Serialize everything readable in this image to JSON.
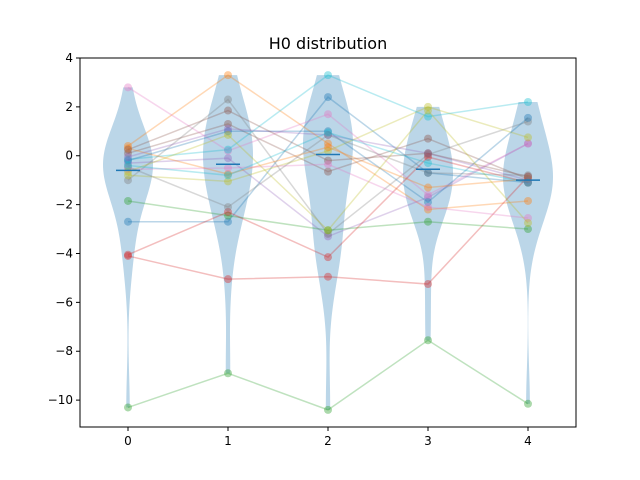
{
  "chart_data": {
    "type": "violin",
    "title": "H0 distribution",
    "xlabel": "",
    "ylabel": "",
    "categories": [
      "0",
      "1",
      "2",
      "3",
      "4"
    ],
    "x_ticks": [
      0,
      1,
      2,
      3,
      4
    ],
    "y_ticks": [
      4,
      2,
      0,
      -2,
      -4,
      -6,
      -8,
      -10
    ],
    "xlim": [
      -0.48,
      4.48
    ],
    "ylim": [
      -11.1,
      4.0
    ],
    "grid": false,
    "legend": "none",
    "violin_color": "#1f77b4",
    "medians": [
      -0.6,
      -0.35,
      0.05,
      -0.55,
      -1.0
    ],
    "series": [
      {
        "color": "#1f77b4",
        "values": [
          -2.7,
          -2.7,
          2.4,
          -0.7,
          -1.1
        ]
      },
      {
        "color": "#ff7f0e",
        "values": [
          0.4,
          3.3,
          0.5,
          -2.2,
          -1.85
        ]
      },
      {
        "color": "#2ca02c",
        "values": [
          -10.3,
          -8.9,
          -10.4,
          -7.55,
          -10.15
        ]
      },
      {
        "color": "#d62728",
        "values": [
          -4.1,
          -5.05,
          -4.95,
          -5.25,
          -0.85
        ]
      },
      {
        "color": "#9467bd",
        "values": [
          -0.3,
          -0.1,
          -3.3,
          -1.7,
          0.5
        ]
      },
      {
        "color": "#8c564b",
        "values": [
          0.1,
          1.3,
          -0.65,
          0.7,
          -0.95
        ]
      },
      {
        "color": "#e377c2",
        "values": [
          2.8,
          0.2,
          1.7,
          -1.6,
          0.5
        ]
      },
      {
        "color": "#7f7f7f",
        "values": [
          -1.0,
          2.3,
          -3.2,
          0.05,
          1.4
        ]
      },
      {
        "color": "#bcbd22",
        "values": [
          -0.8,
          -1.05,
          0.2,
          2.0,
          0.75
        ]
      },
      {
        "color": "#17becf",
        "values": [
          -0.15,
          0.25,
          3.3,
          1.6,
          2.2
        ]
      },
      {
        "color": "#1f77b4",
        "values": [
          -0.2,
          1.0,
          1.0,
          -1.9,
          1.55
        ]
      },
      {
        "color": "#ff7f0e",
        "values": [
          0.3,
          -0.75,
          0.35,
          -1.3,
          -0.95
        ]
      },
      {
        "color": "#2ca02c",
        "values": [
          -1.85,
          -2.45,
          -3.05,
          -2.7,
          -3.0
        ]
      },
      {
        "color": "#d62728",
        "values": [
          -4.05,
          -2.3,
          -4.15,
          -0.05,
          -1.1
        ]
      },
      {
        "color": "#9467bd",
        "values": [
          -0.05,
          1.1,
          0.85,
          0.1,
          -1.0
        ]
      },
      {
        "color": "#8c564b",
        "values": [
          0.25,
          1.85,
          -0.2,
          0.1,
          -0.85
        ]
      },
      {
        "color": "#e377c2",
        "values": [
          -0.55,
          -0.5,
          -0.35,
          -2.1,
          -2.55
        ]
      },
      {
        "color": "#7f7f7f",
        "values": [
          -0.45,
          -2.1,
          0.85,
          -0.7,
          -0.8
        ]
      },
      {
        "color": "#bcbd22",
        "values": [
          -0.65,
          0.85,
          -3.05,
          1.85,
          -2.75
        ]
      },
      {
        "color": "#17becf",
        "values": [
          -0.4,
          -0.8,
          0.95,
          -0.3,
          -1.1
        ]
      }
    ]
  }
}
